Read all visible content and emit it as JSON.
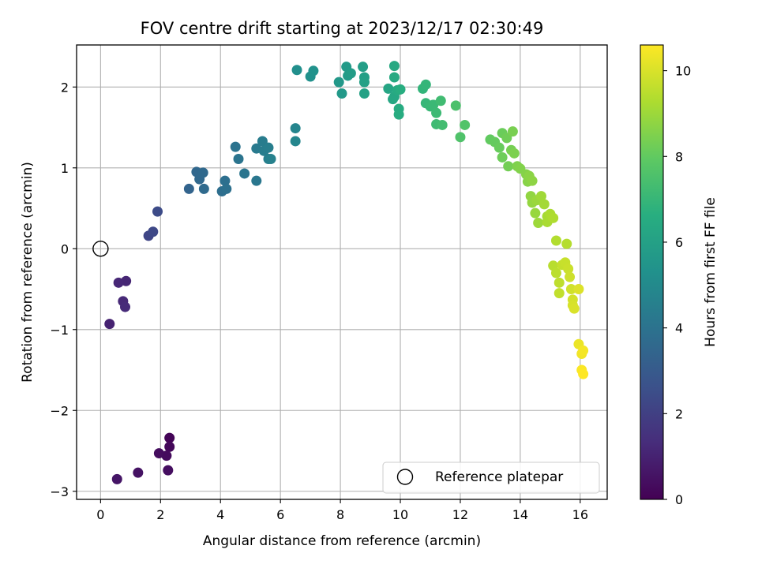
{
  "chart_data": {
    "type": "scatter",
    "title": "FOV centre drift starting at 2023/12/17 02:30:49",
    "xlabel": "Angular distance from reference (arcmin)",
    "ylabel": "Rotation from reference (arcmin)",
    "xlim": [
      -0.8,
      16.9
    ],
    "ylim": [
      -3.1,
      2.52
    ],
    "xticks": [
      0,
      2,
      4,
      6,
      8,
      10,
      12,
      14,
      16
    ],
    "yticks": [
      -3,
      -2,
      -1,
      0,
      1,
      2
    ],
    "xtick_labels": [
      "0",
      "2",
      "4",
      "6",
      "8",
      "10",
      "12",
      "14",
      "16"
    ],
    "ytick_labels": [
      "−3",
      "−2",
      "−1",
      "0",
      "1",
      "2"
    ],
    "grid": true,
    "colormap": "viridis",
    "colorbar": {
      "label": "Hours from first FF file",
      "range": [
        0,
        10.6
      ],
      "ticks": [
        0,
        2,
        4,
        6,
        8,
        10
      ],
      "tick_labels": [
        "0",
        "2",
        "4",
        "6",
        "8",
        "10"
      ]
    },
    "legend": {
      "position": "lower-right",
      "entries": [
        "Reference platepar"
      ]
    },
    "reference_point": {
      "x": 0,
      "y": 0,
      "label": "Reference platepar"
    },
    "points": [
      {
        "x": 2.3,
        "y": -2.34,
        "h": 0.1
      },
      {
        "x": 2.3,
        "y": -2.45,
        "h": 0.2
      },
      {
        "x": 2.2,
        "y": -2.56,
        "h": 0.3
      },
      {
        "x": 1.95,
        "y": -2.53,
        "h": 0.35
      },
      {
        "x": 2.25,
        "y": -2.74,
        "h": 0.4
      },
      {
        "x": 1.25,
        "y": -2.77,
        "h": 0.5
      },
      {
        "x": 0.55,
        "y": -2.85,
        "h": 0.6
      },
      {
        "x": 0.3,
        "y": -0.93,
        "h": 1.0
      },
      {
        "x": 0.85,
        "y": -0.4,
        "h": 1.1
      },
      {
        "x": 0.6,
        "y": -0.42,
        "h": 1.15
      },
      {
        "x": 0.75,
        "y": -0.65,
        "h": 1.2
      },
      {
        "x": 0.82,
        "y": -0.72,
        "h": 1.25
      },
      {
        "x": 1.6,
        "y": 0.16,
        "h": 2.2
      },
      {
        "x": 1.75,
        "y": 0.21,
        "h": 2.3
      },
      {
        "x": 1.9,
        "y": 0.46,
        "h": 2.4
      },
      {
        "x": 2.95,
        "y": 0.74,
        "h": 3.4
      },
      {
        "x": 3.2,
        "y": 0.95,
        "h": 3.5
      },
      {
        "x": 3.3,
        "y": 0.86,
        "h": 3.55
      },
      {
        "x": 3.42,
        "y": 0.94,
        "h": 3.6
      },
      {
        "x": 3.45,
        "y": 0.74,
        "h": 3.65
      },
      {
        "x": 4.05,
        "y": 0.71,
        "h": 3.8
      },
      {
        "x": 4.15,
        "y": 0.84,
        "h": 3.85
      },
      {
        "x": 4.2,
        "y": 0.74,
        "h": 3.9
      },
      {
        "x": 4.5,
        "y": 1.26,
        "h": 4.0
      },
      {
        "x": 4.6,
        "y": 1.11,
        "h": 4.05
      },
      {
        "x": 4.8,
        "y": 0.93,
        "h": 4.1
      },
      {
        "x": 5.2,
        "y": 0.84,
        "h": 4.2
      },
      {
        "x": 5.2,
        "y": 1.24,
        "h": 4.3
      },
      {
        "x": 5.4,
        "y": 1.33,
        "h": 4.4
      },
      {
        "x": 5.45,
        "y": 1.21,
        "h": 4.45
      },
      {
        "x": 5.6,
        "y": 1.25,
        "h": 4.5
      },
      {
        "x": 5.6,
        "y": 1.11,
        "h": 4.55
      },
      {
        "x": 5.68,
        "y": 1.11,
        "h": 4.6
      },
      {
        "x": 6.5,
        "y": 1.49,
        "h": 4.8
      },
      {
        "x": 6.5,
        "y": 1.33,
        "h": 4.85
      },
      {
        "x": 6.55,
        "y": 2.21,
        "h": 5.2
      },
      {
        "x": 7.0,
        "y": 2.13,
        "h": 5.3
      },
      {
        "x": 7.1,
        "y": 2.2,
        "h": 5.35
      },
      {
        "x": 7.95,
        "y": 2.06,
        "h": 5.6
      },
      {
        "x": 8.05,
        "y": 1.92,
        "h": 5.65
      },
      {
        "x": 8.2,
        "y": 2.25,
        "h": 5.7
      },
      {
        "x": 8.25,
        "y": 2.14,
        "h": 5.75
      },
      {
        "x": 8.35,
        "y": 2.17,
        "h": 5.8
      },
      {
        "x": 8.75,
        "y": 2.25,
        "h": 5.9
      },
      {
        "x": 8.8,
        "y": 2.12,
        "h": 5.95
      },
      {
        "x": 8.8,
        "y": 2.06,
        "h": 6.0
      },
      {
        "x": 8.8,
        "y": 1.92,
        "h": 6.05
      },
      {
        "x": 9.6,
        "y": 1.98,
        "h": 6.2
      },
      {
        "x": 9.75,
        "y": 1.85,
        "h": 6.25
      },
      {
        "x": 9.8,
        "y": 1.88,
        "h": 6.3
      },
      {
        "x": 9.8,
        "y": 2.26,
        "h": 6.35
      },
      {
        "x": 9.8,
        "y": 2.12,
        "h": 6.4
      },
      {
        "x": 9.9,
        "y": 1.96,
        "h": 6.45
      },
      {
        "x": 9.95,
        "y": 1.73,
        "h": 6.5
      },
      {
        "x": 9.95,
        "y": 1.66,
        "h": 6.55
      },
      {
        "x": 10.0,
        "y": 1.97,
        "h": 6.6
      },
      {
        "x": 10.75,
        "y": 1.98,
        "h": 6.9
      },
      {
        "x": 10.85,
        "y": 2.03,
        "h": 6.95
      },
      {
        "x": 10.85,
        "y": 1.8,
        "h": 7.0
      },
      {
        "x": 11.0,
        "y": 1.76,
        "h": 7.05
      },
      {
        "x": 11.1,
        "y": 1.78,
        "h": 7.1
      },
      {
        "x": 11.2,
        "y": 1.68,
        "h": 7.15
      },
      {
        "x": 11.2,
        "y": 1.54,
        "h": 7.2
      },
      {
        "x": 11.35,
        "y": 1.83,
        "h": 7.25
      },
      {
        "x": 11.4,
        "y": 1.53,
        "h": 7.3
      },
      {
        "x": 11.85,
        "y": 1.77,
        "h": 7.5
      },
      {
        "x": 12.0,
        "y": 1.38,
        "h": 7.6
      },
      {
        "x": 12.15,
        "y": 1.53,
        "h": 7.65
      },
      {
        "x": 13.0,
        "y": 1.35,
        "h": 8.0
      },
      {
        "x": 13.15,
        "y": 1.32,
        "h": 8.05
      },
      {
        "x": 13.3,
        "y": 1.25,
        "h": 8.1
      },
      {
        "x": 13.4,
        "y": 1.43,
        "h": 8.15
      },
      {
        "x": 13.4,
        "y": 1.13,
        "h": 8.2
      },
      {
        "x": 13.55,
        "y": 1.37,
        "h": 8.25
      },
      {
        "x": 13.6,
        "y": 1.02,
        "h": 8.3
      },
      {
        "x": 13.7,
        "y": 1.22,
        "h": 8.35
      },
      {
        "x": 13.75,
        "y": 1.45,
        "h": 8.4
      },
      {
        "x": 13.8,
        "y": 1.18,
        "h": 8.45
      },
      {
        "x": 13.9,
        "y": 1.02,
        "h": 8.5
      },
      {
        "x": 14.0,
        "y": 0.99,
        "h": 8.55
      },
      {
        "x": 14.2,
        "y": 0.92,
        "h": 8.6
      },
      {
        "x": 14.25,
        "y": 0.83,
        "h": 8.65
      },
      {
        "x": 14.3,
        "y": 0.9,
        "h": 8.7
      },
      {
        "x": 14.4,
        "y": 0.84,
        "h": 8.75
      },
      {
        "x": 14.35,
        "y": 0.65,
        "h": 8.8
      },
      {
        "x": 14.4,
        "y": 0.57,
        "h": 8.85
      },
      {
        "x": 14.5,
        "y": 0.44,
        "h": 8.9
      },
      {
        "x": 14.55,
        "y": 0.6,
        "h": 8.95
      },
      {
        "x": 14.6,
        "y": 0.32,
        "h": 9.0
      },
      {
        "x": 14.7,
        "y": 0.65,
        "h": 9.05
      },
      {
        "x": 14.8,
        "y": 0.55,
        "h": 9.1
      },
      {
        "x": 14.9,
        "y": 0.4,
        "h": 9.15
      },
      {
        "x": 14.9,
        "y": 0.33,
        "h": 9.2
      },
      {
        "x": 15.0,
        "y": 0.43,
        "h": 9.25
      },
      {
        "x": 15.1,
        "y": 0.38,
        "h": 9.3
      },
      {
        "x": 15.2,
        "y": 0.1,
        "h": 9.35
      },
      {
        "x": 15.55,
        "y": 0.06,
        "h": 9.4
      },
      {
        "x": 15.1,
        "y": -0.21,
        "h": 9.45
      },
      {
        "x": 15.2,
        "y": -0.3,
        "h": 9.5
      },
      {
        "x": 15.3,
        "y": -0.42,
        "h": 9.55
      },
      {
        "x": 15.3,
        "y": -0.55,
        "h": 9.6
      },
      {
        "x": 15.4,
        "y": -0.2,
        "h": 9.65
      },
      {
        "x": 15.5,
        "y": -0.17,
        "h": 9.7
      },
      {
        "x": 15.6,
        "y": -0.25,
        "h": 9.75
      },
      {
        "x": 15.65,
        "y": -0.35,
        "h": 9.8
      },
      {
        "x": 15.7,
        "y": -0.5,
        "h": 9.85
      },
      {
        "x": 15.75,
        "y": -0.63,
        "h": 9.9
      },
      {
        "x": 15.75,
        "y": -0.7,
        "h": 9.95
      },
      {
        "x": 15.8,
        "y": -0.74,
        "h": 10.0
      },
      {
        "x": 15.95,
        "y": -0.5,
        "h": 10.05
      },
      {
        "x": 15.95,
        "y": -1.18,
        "h": 10.3
      },
      {
        "x": 16.05,
        "y": -1.3,
        "h": 10.4
      },
      {
        "x": 16.1,
        "y": -1.26,
        "h": 10.45
      },
      {
        "x": 16.05,
        "y": -1.5,
        "h": 10.55
      },
      {
        "x": 16.1,
        "y": -1.55,
        "h": 10.6
      }
    ]
  }
}
